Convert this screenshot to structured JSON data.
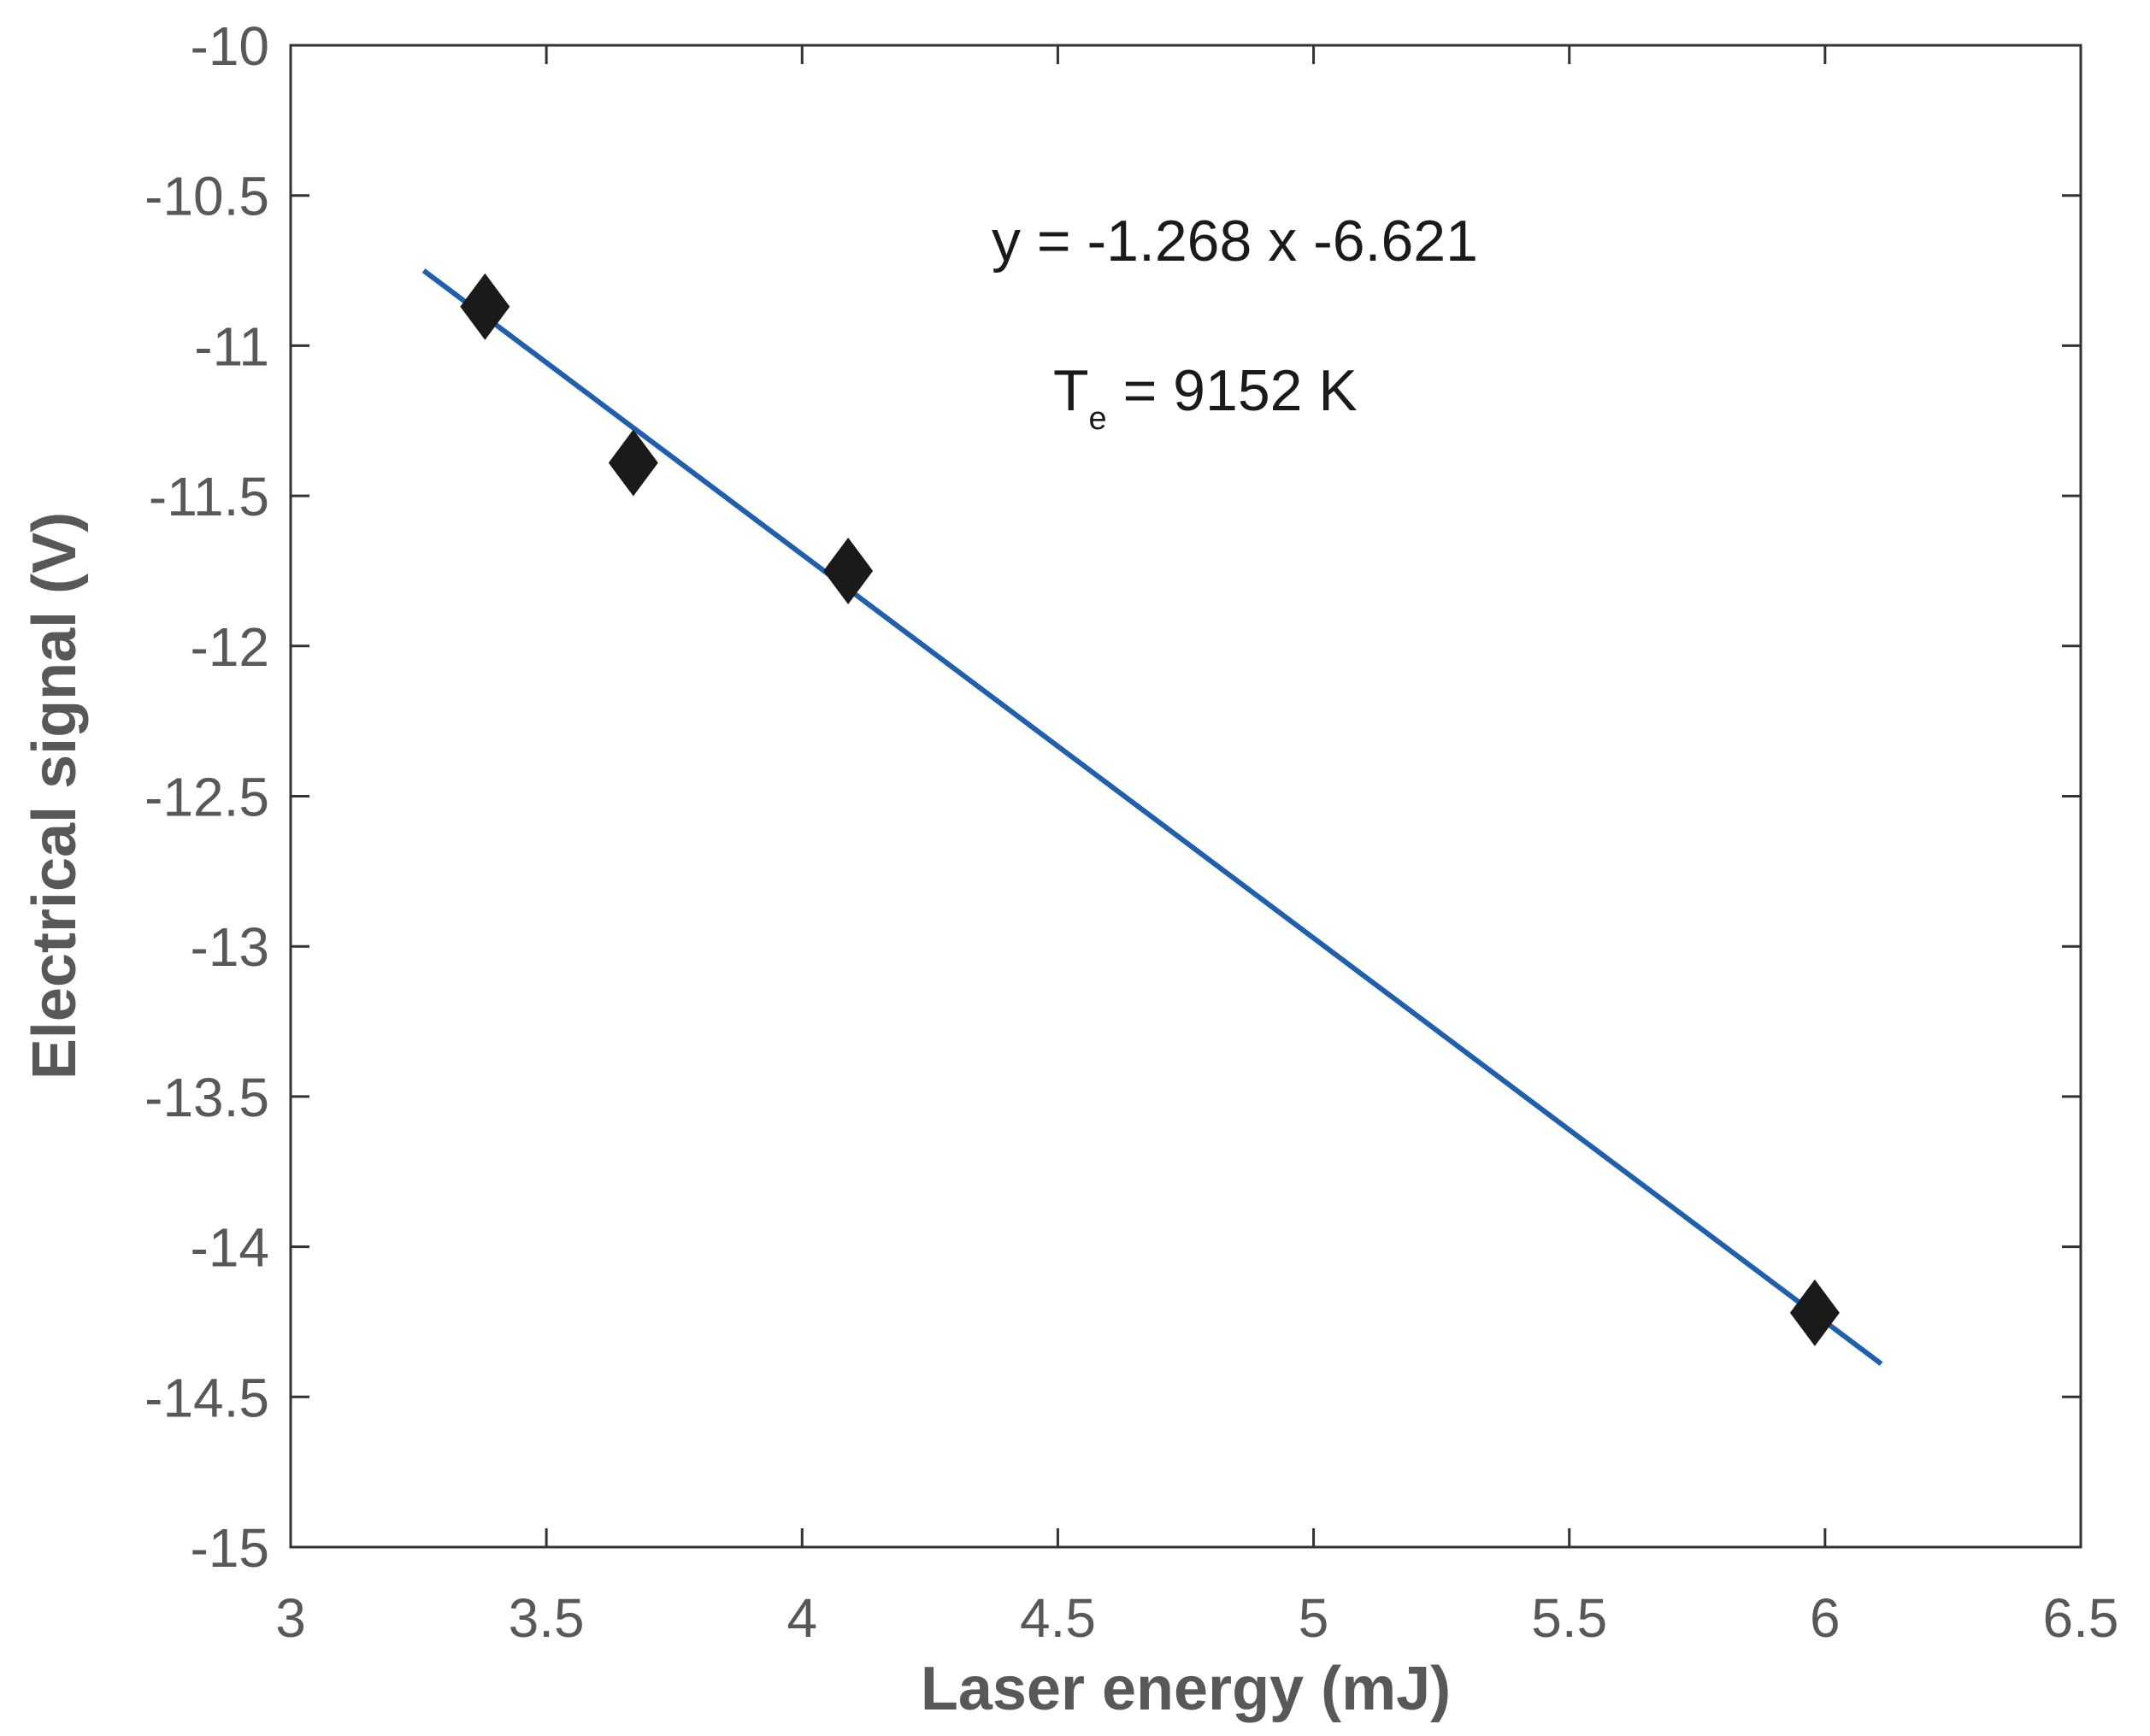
{
  "chart_data": {
    "type": "scatter",
    "xlabel": "Laser energy (mJ)",
    "ylabel": "Electrical signal (V)",
    "xlim": [
      3,
      6.5
    ],
    "ylim": [
      -15,
      -10
    ],
    "x_ticks": [
      "3",
      "3.5",
      "4",
      "4.5",
      "5",
      "5.5",
      "6",
      "6.5"
    ],
    "y_ticks": [
      "-10",
      "-10.5",
      "-11",
      "-11.5",
      "-12",
      "-12.5",
      "-13",
      "-13.5",
      "-14",
      "-14.5",
      "-15"
    ],
    "grid": false,
    "legend": "none",
    "series": [
      {
        "marker": "diamond",
        "color": "#1a1a1a",
        "points": [
          {
            "x": 3.38,
            "y": -10.87
          },
          {
            "x": 3.67,
            "y": -11.39
          },
          {
            "x": 4.09,
            "y": -11.75
          },
          {
            "x": 5.98,
            "y": -14.22
          }
        ]
      },
      {
        "kind": "line",
        "color": "#1f5fae",
        "points": [
          {
            "x": 3.26,
            "y": -10.75
          },
          {
            "x": 6.11,
            "y": -14.39
          }
        ]
      }
    ],
    "annotations": {
      "equation": "y = -1.268 x -6.621",
      "temperature_main": "T",
      "temperature_sub": "e",
      "temperature_value": " = 9152 K"
    }
  }
}
